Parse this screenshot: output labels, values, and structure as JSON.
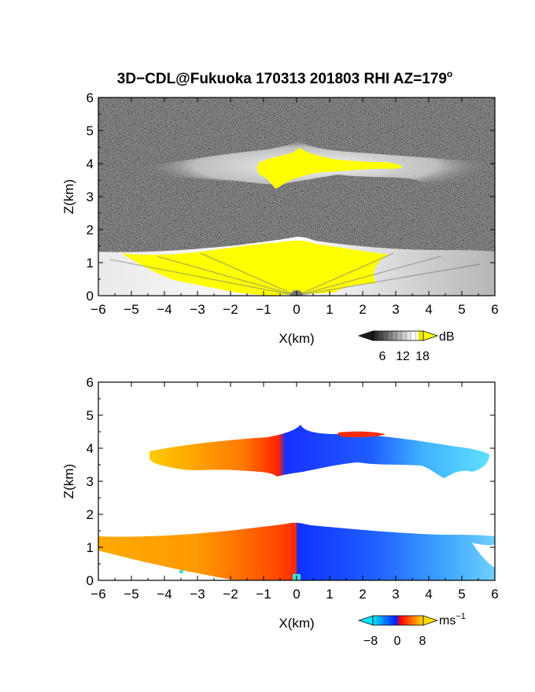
{
  "figure": {
    "title": "3D−CDL@Fukuoka 170313 201803 RHI AZ=179",
    "title_superscript": "o"
  },
  "chart_data": [
    {
      "type": "heatmap",
      "panel": "reflectivity",
      "xlabel": "X(km)",
      "ylabel": "Z(km)",
      "xlim": [
        -6,
        6
      ],
      "ylim": [
        0,
        6
      ],
      "xticks": [
        "−6",
        "−5",
        "−4",
        "−3",
        "−2",
        "−1",
        "0",
        "1",
        "2",
        "3",
        "4",
        "5",
        "6"
      ],
      "yticks": [
        "0",
        "1",
        "2",
        "3",
        "4",
        "5",
        "6"
      ],
      "background": "noise",
      "layers": [
        {
          "x_range": [
            -4.5,
            6
          ],
          "z_range": [
            3.2,
            4.6
          ],
          "peak": [
            0,
            4.6
          ],
          "saturated_x_range": [
            -0.9,
            3.2
          ]
        },
        {
          "x_range": [
            -6,
            6
          ],
          "z_range": [
            0,
            1.4
          ],
          "peak": [
            0,
            1.4
          ],
          "saturated_x_range": [
            -3.5,
            2.5
          ]
        }
      ],
      "colorbar": {
        "unit": "dB",
        "ticks": [
          "6",
          "12",
          "18"
        ],
        "min": 0,
        "max": 20,
        "colors": [
          "#1a1a1a",
          "#ffffff",
          "#ffff00"
        ]
      }
    },
    {
      "type": "heatmap",
      "panel": "doppler_velocity",
      "xlabel": "X(km)",
      "ylabel": "Z(km)",
      "xlim": [
        -6,
        6
      ],
      "ylim": [
        0,
        6
      ],
      "xticks": [
        "−6",
        "−5",
        "−4",
        "−3",
        "−2",
        "−1",
        "0",
        "1",
        "2",
        "3",
        "4",
        "5",
        "6"
      ],
      "yticks": [
        "0",
        "1",
        "2",
        "3",
        "4",
        "5",
        "6"
      ],
      "layers": [
        {
          "x_range": [
            -4.5,
            6
          ],
          "z_range": [
            3.2,
            4.6
          ],
          "velocity_left": 6,
          "velocity_right": -6,
          "shear_x": -0.3
        },
        {
          "x_range": [
            -6,
            6
          ],
          "z_range": [
            0,
            1.4
          ],
          "velocity_left": 6,
          "velocity_right": -6,
          "shear_x": 0
        }
      ],
      "colorbar": {
        "unit": "ms",
        "unit_superscript": "−1",
        "ticks": [
          "−8",
          "0",
          "8"
        ],
        "min": -10,
        "max": 10,
        "colors": [
          "#00e5ff",
          "#0020ff",
          "#ff0000",
          "#ffdd00"
        ]
      }
    }
  ]
}
